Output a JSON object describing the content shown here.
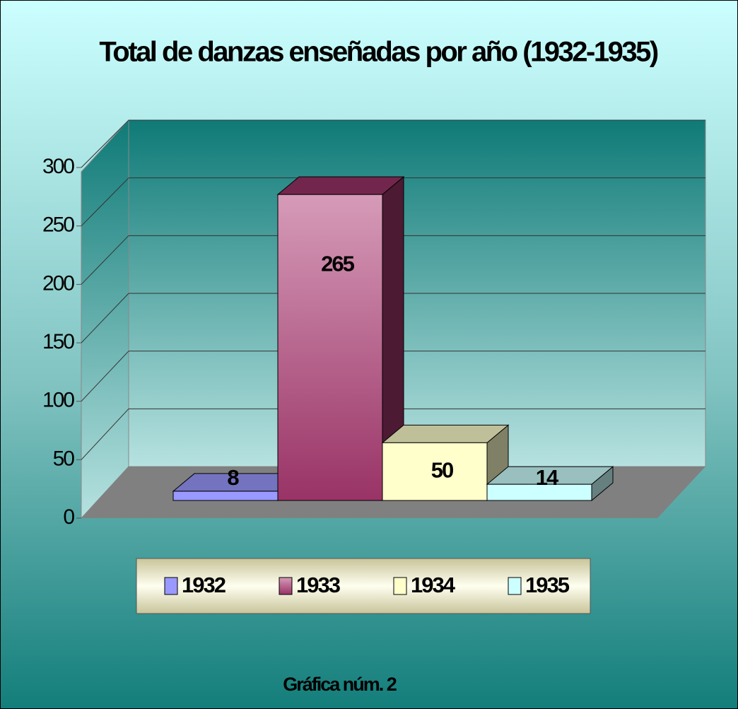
{
  "chart_data": {
    "type": "bar3d",
    "title": "Total de danzas enseñadas por año (1932-1935)",
    "footer": "Gráfica núm. 2",
    "series": [
      {
        "name": "1932",
        "color": "#9999ff",
        "values": [
          8
        ]
      },
      {
        "name": "1933",
        "color": "#993366",
        "values": [
          265
        ]
      },
      {
        "name": "1934",
        "color": "#ffffcc",
        "values": [
          50
        ]
      },
      {
        "name": "1935",
        "color": "#ccffff",
        "values": [
          14
        ]
      }
    ],
    "ylim": [
      0,
      300
    ],
    "yticks": [
      0,
      50,
      100,
      150,
      200,
      250,
      300
    ],
    "grid": true,
    "legend": "bottom"
  }
}
